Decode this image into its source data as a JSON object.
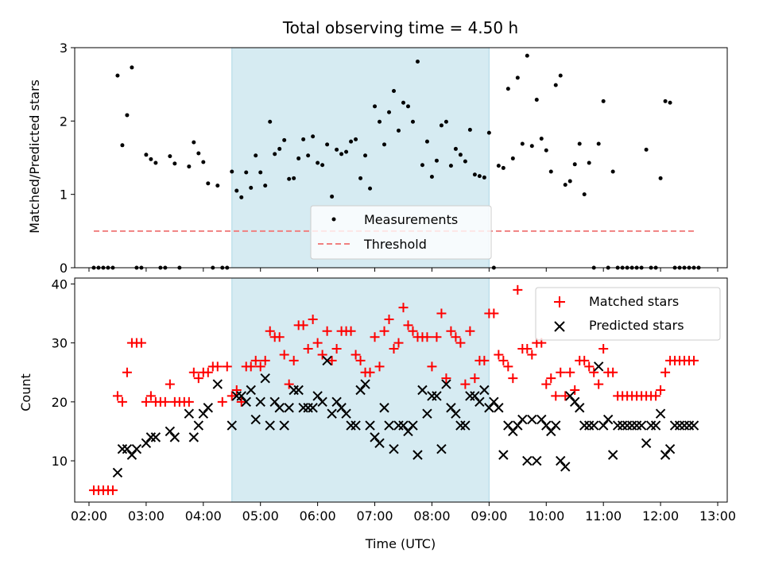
{
  "chart_data": [
    {
      "type": "scatter",
      "title": "Total observing time = 4.50 h",
      "xlabel": "",
      "ylabel": "Matched/Predicted stars",
      "ylim": [
        0,
        3
      ],
      "yticks": [
        "0",
        "1",
        "2",
        "3"
      ],
      "highlight_span": [
        "04:30",
        "09:00"
      ],
      "legend_position": "lower-center",
      "series": [
        {
          "name": "Measurements",
          "marker": "dot",
          "color": "#000000",
          "x": [
            "02:05",
            "02:10",
            "02:15",
            "02:20",
            "02:25",
            "02:30",
            "02:35",
            "02:40",
            "02:45",
            "02:50",
            "02:55",
            "03:00",
            "03:05",
            "03:10",
            "03:15",
            "03:20",
            "03:25",
            "03:30",
            "03:35",
            "03:45",
            "03:50",
            "03:55",
            "04:00",
            "04:05",
            "04:10",
            "04:15",
            "04:20",
            "04:25",
            "04:30",
            "04:35",
            "04:40",
            "04:45",
            "04:50",
            "04:55",
            "05:00",
            "05:05",
            "05:10",
            "05:15",
            "05:20",
            "05:25",
            "05:30",
            "05:35",
            "05:40",
            "05:45",
            "05:50",
            "05:55",
            "06:00",
            "06:05",
            "06:10",
            "06:15",
            "06:20",
            "06:25",
            "06:30",
            "06:35",
            "06:40",
            "06:45",
            "06:50",
            "06:55",
            "07:00",
            "07:05",
            "07:10",
            "07:15",
            "07:20",
            "07:25",
            "07:30",
            "07:35",
            "07:40",
            "07:45",
            "07:50",
            "07:55",
            "08:00",
            "08:05",
            "08:10",
            "08:15",
            "08:20",
            "08:25",
            "08:30",
            "08:35",
            "08:40",
            "08:45",
            "08:50",
            "08:55",
            "09:00",
            "09:05",
            "09:10",
            "09:15",
            "09:20",
            "09:25",
            "09:30",
            "09:35",
            "09:40",
            "09:45",
            "09:50",
            "09:55",
            "10:00",
            "10:05",
            "10:10",
            "10:15",
            "10:20",
            "10:25",
            "10:30",
            "10:35",
            "10:40",
            "10:45",
            "10:50",
            "10:55",
            "11:00",
            "11:05",
            "11:10",
            "11:15",
            "11:20",
            "11:25",
            "11:30",
            "11:35",
            "11:40",
            "11:45",
            "11:50",
            "11:55",
            "12:00",
            "12:05",
            "12:10",
            "12:15",
            "12:20",
            "12:25",
            "12:30",
            "12:35",
            "12:40"
          ],
          "y": [
            0,
            0,
            0,
            0,
            0,
            2.62,
            1.67,
            2.08,
            2.73,
            0,
            0,
            1.54,
            1.48,
            1.43,
            0,
            0,
            1.52,
            1.42,
            0,
            1.38,
            1.71,
            1.56,
            1.44,
            1.15,
            0,
            1.12,
            0,
            0,
            1.31,
            1.05,
            0.96,
            1.3,
            1.09,
            1.53,
            1.3,
            1.12,
            1.99,
            1.55,
            1.62,
            1.74,
            1.21,
            1.22,
            1.49,
            1.75,
            1.53,
            1.79,
            1.43,
            1.4,
            1.68,
            0.97,
            1.61,
            1.55,
            1.58,
            1.72,
            1.75,
            1.22,
            1.53,
            1.08,
            2.2,
            1.99,
            1.68,
            2.12,
            2.41,
            1.87,
            2.25,
            2.2,
            1.99,
            2.81,
            1.4,
            1.72,
            1.24,
            1.46,
            1.94,
            1.99,
            1.39,
            1.62,
            1.54,
            1.45,
            1.88,
            1.27,
            1.25,
            1.23,
            1.84,
            0,
            1.39,
            1.36,
            2.44,
            1.49,
            2.59,
            1.69,
            2.89,
            1.66,
            2.29,
            1.76,
            1.6,
            1.31,
            2.49,
            2.62,
            1.13,
            1.18,
            1.41,
            1.69,
            1.0,
            1.43,
            0,
            1.69,
            2.27,
            0,
            1.31,
            0,
            0,
            0,
            0,
            0,
            0,
            1.61,
            0,
            0,
            1.22,
            2.27,
            2.25,
            0,
            0,
            0,
            0,
            0,
            0
          ]
        },
        {
          "name": "Threshold",
          "marker": "dashed-line",
          "color": "#f08080",
          "x": [
            "02:05",
            "12:35"
          ],
          "y": [
            0.5,
            0.5
          ]
        }
      ]
    },
    {
      "type": "scatter",
      "title": "",
      "xlabel": "Time (UTC)",
      "ylabel": "Count",
      "ylim": [
        3,
        41
      ],
      "yticks": [
        "10",
        "20",
        "30",
        "40"
      ],
      "xticks": [
        "02:00",
        "03:00",
        "04:00",
        "05:00",
        "06:00",
        "07:00",
        "08:00",
        "09:00",
        "10:00",
        "11:00",
        "12:00",
        "13:00"
      ],
      "xlim": [
        "01:45",
        "13:10"
      ],
      "highlight_span": [
        "04:30",
        "09:00"
      ],
      "legend_position": "upper-right",
      "series": [
        {
          "name": "Matched stars",
          "marker": "plus",
          "color": "#ff0000",
          "x": [
            "02:05",
            "02:10",
            "02:15",
            "02:20",
            "02:25",
            "02:30",
            "02:35",
            "02:40",
            "02:45",
            "02:50",
            "02:55",
            "03:00",
            "03:05",
            "03:10",
            "03:15",
            "03:20",
            "03:25",
            "03:30",
            "03:35",
            "03:40",
            "03:45",
            "03:50",
            "03:55",
            "04:00",
            "04:05",
            "04:10",
            "04:15",
            "04:20",
            "04:25",
            "04:30",
            "04:35",
            "04:40",
            "04:45",
            "04:50",
            "04:55",
            "05:00",
            "05:05",
            "05:10",
            "05:15",
            "05:20",
            "05:25",
            "05:30",
            "05:35",
            "05:40",
            "05:45",
            "05:50",
            "05:55",
            "06:00",
            "06:05",
            "06:10",
            "06:15",
            "06:20",
            "06:25",
            "06:30",
            "06:35",
            "06:40",
            "06:45",
            "06:50",
            "06:55",
            "07:00",
            "07:05",
            "07:10",
            "07:15",
            "07:20",
            "07:25",
            "07:30",
            "07:35",
            "07:40",
            "07:45",
            "07:50",
            "07:55",
            "08:00",
            "08:05",
            "08:10",
            "08:15",
            "08:20",
            "08:25",
            "08:30",
            "08:35",
            "08:40",
            "08:45",
            "08:50",
            "08:55",
            "09:00",
            "09:05",
            "09:10",
            "09:15",
            "09:20",
            "09:25",
            "09:30",
            "09:35",
            "09:40",
            "09:45",
            "09:50",
            "09:55",
            "10:00",
            "10:05",
            "10:10",
            "10:15",
            "10:20",
            "10:25",
            "10:30",
            "10:35",
            "10:40",
            "10:45",
            "10:50",
            "10:55",
            "11:00",
            "11:05",
            "11:10",
            "11:15",
            "11:20",
            "11:25",
            "11:30",
            "11:35",
            "11:40",
            "11:45",
            "11:50",
            "11:55",
            "12:00",
            "12:05",
            "12:10",
            "12:15",
            "12:20",
            "12:25",
            "12:30",
            "12:35"
          ],
          "y": [
            5,
            5,
            5,
            5,
            5,
            21,
            20,
            25,
            30,
            30,
            30,
            20,
            21,
            20,
            20,
            20,
            23,
            20,
            20,
            20,
            20,
            25,
            24,
            25,
            25,
            26,
            26,
            20,
            26,
            21,
            22,
            20,
            26,
            26,
            27,
            26,
            27,
            32,
            31,
            31,
            28,
            23,
            27,
            33,
            33,
            29,
            34,
            30,
            28,
            32,
            27,
            29,
            32,
            32,
            32,
            28,
            27,
            25,
            25,
            31,
            26,
            32,
            34,
            29,
            30,
            36,
            33,
            32,
            31,
            31,
            31,
            26,
            31,
            35,
            24,
            32,
            31,
            30,
            23,
            32,
            24,
            27,
            27,
            35,
            35,
            28,
            27,
            26,
            24,
            39,
            29,
            29,
            28,
            30,
            30,
            23,
            24,
            21,
            25,
            21,
            25,
            22,
            27,
            27,
            26,
            25,
            23,
            29,
            25,
            25,
            21,
            21,
            21,
            21,
            21,
            21,
            21,
            21,
            21,
            22,
            25,
            27,
            27,
            27,
            27,
            27,
            27
          ]
        },
        {
          "name": "Predicted stars",
          "marker": "x",
          "color": "#000000",
          "x": [
            "02:30",
            "02:35",
            "02:40",
            "02:45",
            "02:50",
            "03:00",
            "03:05",
            "03:10",
            "03:25",
            "03:30",
            "03:45",
            "03:50",
            "03:55",
            "04:00",
            "04:05",
            "04:15",
            "04:30",
            "04:35",
            "04:40",
            "04:45",
            "04:50",
            "04:55",
            "05:00",
            "05:05",
            "05:10",
            "05:15",
            "05:20",
            "05:25",
            "05:30",
            "05:35",
            "05:40",
            "05:45",
            "05:50",
            "05:55",
            "06:00",
            "06:05",
            "06:10",
            "06:15",
            "06:20",
            "06:25",
            "06:30",
            "06:35",
            "06:40",
            "06:45",
            "06:50",
            "06:55",
            "07:00",
            "07:05",
            "07:10",
            "07:15",
            "07:20",
            "07:25",
            "07:30",
            "07:35",
            "07:40",
            "07:45",
            "07:50",
            "07:55",
            "08:00",
            "08:05",
            "08:10",
            "08:15",
            "08:20",
            "08:25",
            "08:30",
            "08:35",
            "08:40",
            "08:45",
            "08:50",
            "08:55",
            "09:00",
            "09:05",
            "09:10",
            "09:15",
            "09:20",
            "09:25",
            "09:30",
            "09:35",
            "09:40",
            "09:45",
            "09:50",
            "09:55",
            "10:00",
            "10:05",
            "10:10",
            "10:15",
            "10:20",
            "10:25",
            "10:30",
            "10:35",
            "10:40",
            "10:45",
            "10:50",
            "10:55",
            "11:00",
            "11:05",
            "11:10",
            "11:15",
            "11:20",
            "11:25",
            "11:30",
            "11:35",
            "11:40",
            "11:45",
            "11:50",
            "11:55",
            "12:00",
            "12:05",
            "12:10",
            "12:15",
            "12:20",
            "12:25",
            "12:30",
            "12:35"
          ],
          "y": [
            8,
            12,
            12,
            11,
            12,
            13,
            14,
            14,
            15,
            14,
            18,
            14,
            16,
            18,
            19,
            23,
            16,
            21,
            21,
            20,
            22,
            17,
            20,
            24,
            16,
            20,
            19,
            16,
            19,
            22,
            22,
            19,
            19,
            19,
            21,
            20,
            27,
            18,
            20,
            19,
            18,
            16,
            16,
            22,
            23,
            16,
            14,
            13,
            19,
            16,
            12,
            16,
            16,
            15,
            16,
            11,
            22,
            18,
            21,
            21,
            12,
            23,
            19,
            18,
            16,
            16,
            21,
            21,
            20,
            22,
            19,
            20,
            19,
            11,
            16,
            15,
            16,
            17,
            10,
            17,
            10,
            17,
            16,
            15,
            16,
            10,
            9,
            21,
            20,
            19,
            16,
            16,
            16,
            26,
            16,
            17,
            11,
            16,
            16,
            16,
            16,
            16,
            16,
            13,
            16,
            16,
            18,
            11,
            12,
            16,
            16,
            16,
            16,
            16
          ]
        }
      ]
    }
  ]
}
